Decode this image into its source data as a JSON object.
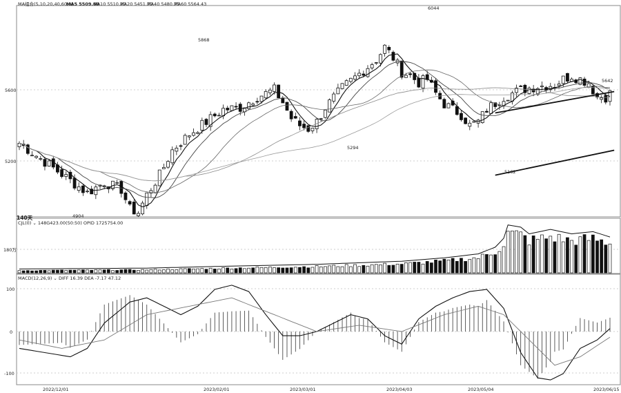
{
  "main": {
    "indicator_label": "MA组合(5,10,20,40,60,0)",
    "ma_readouts": [
      {
        "label": "MA5 5509.60",
        "value": 5509.6
      },
      {
        "label": "MA10 5510.20",
        "value": 5510.2
      },
      {
        "label": "MA20 5451.70",
        "value": 5451.7
      },
      {
        "label": "MA40 5480.75",
        "value": 5480.75
      },
      {
        "label": "MA60 5564.43",
        "value": 5564.43
      }
    ],
    "period_label": "140天",
    "y_ticks": [
      {
        "label": "5600",
        "value": 5600
      },
      {
        "label": "5200",
        "value": 5200
      }
    ],
    "annotations": [
      {
        "text": "4904",
        "value": 4904
      },
      {
        "text": "5868",
        "value": 5868
      },
      {
        "text": "5294",
        "value": 5294
      },
      {
        "text": "6044",
        "value": 6044
      },
      {
        "text": "5162",
        "value": 5162
      },
      {
        "text": "5642",
        "value": 5642
      }
    ]
  },
  "volume": {
    "label": "CJL(0) ⌄ 148G423.00(50:50) OPID 1725754.00",
    "y_tick": "180万"
  },
  "macd": {
    "label": "MACD(12,26,9) ⌄ DIFF 16.39 DEA -7.17 47.12",
    "values": {
      "diff": 16.39,
      "dea": -7.17,
      "macd": 47.12
    },
    "y_ticks": [
      {
        "label": "100",
        "value": 100
      },
      {
        "label": "0",
        "value": 0
      },
      {
        "label": "-100",
        "value": -100
      }
    ]
  },
  "x_axis": {
    "dates": [
      "2022/12/01",
      "2023/02/01",
      "2023/03/01",
      "2023/04/03",
      "2023/05/04",
      "2023/06/15"
    ]
  },
  "chart_data": {
    "type": "candlestick",
    "n_bars": 140,
    "price_range": [
      4850,
      6100
    ],
    "close_path": [
      [
        0,
        5300
      ],
      [
        4,
        5230
      ],
      [
        8,
        5160
      ],
      [
        12,
        5090
      ],
      [
        16,
        5020
      ],
      [
        20,
        5080
      ],
      [
        24,
        5040
      ],
      [
        26,
        4930
      ],
      [
        28,
        4910
      ],
      [
        30,
        5010
      ],
      [
        33,
        5120
      ],
      [
        36,
        5260
      ],
      [
        40,
        5350
      ],
      [
        44,
        5420
      ],
      [
        48,
        5490
      ],
      [
        52,
        5500
      ],
      [
        56,
        5560
      ],
      [
        60,
        5600
      ],
      [
        62,
        5530
      ],
      [
        64,
        5440
      ],
      [
        66,
        5400
      ],
      [
        68,
        5380
      ],
      [
        70,
        5420
      ],
      [
        72,
        5500
      ],
      [
        76,
        5610
      ],
      [
        80,
        5690
      ],
      [
        84,
        5770
      ],
      [
        86,
        5840
      ],
      [
        88,
        5780
      ],
      [
        90,
        5700
      ],
      [
        92,
        5680
      ],
      [
        94,
        5640
      ],
      [
        96,
        5660
      ],
      [
        98,
        5580
      ],
      [
        100,
        5520
      ],
      [
        102,
        5490
      ],
      [
        104,
        5460
      ],
      [
        106,
        5400
      ],
      [
        108,
        5420
      ],
      [
        110,
        5490
      ],
      [
        114,
        5560
      ],
      [
        118,
        5600
      ],
      [
        122,
        5620
      ],
      [
        126,
        5630
      ],
      [
        128,
        5660
      ],
      [
        130,
        5680
      ],
      [
        132,
        5660
      ],
      [
        134,
        5640
      ],
      [
        136,
        5560
      ],
      [
        138,
        5560
      ],
      [
        140,
        5600
      ]
    ],
    "volume_range": [
      0,
      2500000
    ],
    "volume_path": [
      [
        0,
        120000
      ],
      [
        30,
        160000
      ],
      [
        50,
        250000
      ],
      [
        70,
        330000
      ],
      [
        90,
        470000
      ],
      [
        100,
        620000
      ],
      [
        108,
        800000
      ],
      [
        112,
        1100000
      ],
      [
        114,
        1500000
      ],
      [
        115,
        2100000
      ],
      [
        118,
        2000000
      ],
      [
        120,
        1700000
      ],
      [
        125,
        1900000
      ],
      [
        130,
        1700000
      ],
      [
        135,
        1800000
      ],
      [
        140,
        1500000
      ]
    ],
    "macd_range": [
      -130,
      120
    ],
    "diff_path": [
      [
        0,
        -40
      ],
      [
        6,
        -50
      ],
      [
        12,
        -60
      ],
      [
        16,
        -40
      ],
      [
        20,
        20
      ],
      [
        26,
        70
      ],
      [
        30,
        80
      ],
      [
        34,
        60
      ],
      [
        38,
        40
      ],
      [
        42,
        60
      ],
      [
        46,
        100
      ],
      [
        50,
        110
      ],
      [
        54,
        95
      ],
      [
        58,
        40
      ],
      [
        62,
        -10
      ],
      [
        66,
        -10
      ],
      [
        70,
        0
      ],
      [
        74,
        20
      ],
      [
        78,
        40
      ],
      [
        82,
        30
      ],
      [
        86,
        -10
      ],
      [
        90,
        -30
      ],
      [
        94,
        30
      ],
      [
        98,
        60
      ],
      [
        102,
        80
      ],
      [
        106,
        95
      ],
      [
        110,
        100
      ],
      [
        114,
        55
      ],
      [
        118,
        -50
      ],
      [
        122,
        -110
      ],
      [
        125,
        -115
      ],
      [
        128,
        -100
      ],
      [
        132,
        -40
      ],
      [
        136,
        -20
      ],
      [
        140,
        16
      ]
    ],
    "dea_path": [
      [
        0,
        -20
      ],
      [
        10,
        -40
      ],
      [
        20,
        -20
      ],
      [
        30,
        40
      ],
      [
        40,
        60
      ],
      [
        50,
        80
      ],
      [
        60,
        40
      ],
      [
        70,
        0
      ],
      [
        80,
        15
      ],
      [
        90,
        0
      ],
      [
        100,
        40
      ],
      [
        108,
        60
      ],
      [
        114,
        40
      ],
      [
        120,
        -20
      ],
      [
        126,
        -80
      ],
      [
        132,
        -60
      ],
      [
        138,
        -20
      ],
      [
        140,
        -7
      ]
    ],
    "channel_upper": [
      [
        112,
        5470
      ],
      [
        140,
        5590
      ]
    ],
    "channel_lower": [
      [
        112,
        5120
      ],
      [
        140,
        5260
      ]
    ]
  }
}
